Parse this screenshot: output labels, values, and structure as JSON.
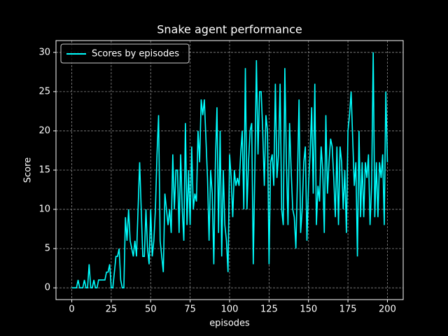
{
  "chart_data": {
    "type": "line",
    "title": "Snake agent performance",
    "x_label": "episodes",
    "y_label": "Score",
    "x": [
      0,
      1,
      2,
      3,
      4,
      5,
      6,
      7,
      8,
      9,
      10,
      11,
      12,
      13,
      14,
      15,
      16,
      17,
      18,
      19,
      20,
      21,
      22,
      23,
      24,
      25,
      26,
      27,
      28,
      29,
      30,
      31,
      32,
      33,
      34,
      35,
      36,
      37,
      38,
      39,
      40,
      41,
      42,
      43,
      44,
      45,
      46,
      47,
      48,
      49,
      50,
      51,
      52,
      53,
      54,
      55,
      56,
      57,
      58,
      59,
      60,
      61,
      62,
      63,
      64,
      65,
      66,
      67,
      68,
      69,
      70,
      71,
      72,
      73,
      74,
      75,
      76,
      77,
      78,
      79,
      80,
      81,
      82,
      83,
      84,
      85,
      86,
      87,
      88,
      89,
      90,
      91,
      92,
      93,
      94,
      95,
      96,
      97,
      98,
      99,
      100,
      101,
      102,
      103,
      104,
      105,
      106,
      107,
      108,
      109,
      110,
      111,
      112,
      113,
      114,
      115,
      116,
      117,
      118,
      119,
      120,
      121,
      122,
      123,
      124,
      125,
      126,
      127,
      128,
      129,
      130,
      131,
      132,
      133,
      134,
      135,
      136,
      137,
      138,
      139,
      140,
      141,
      142,
      143,
      144,
      145,
      146,
      147,
      148,
      149,
      150,
      151,
      152,
      153,
      154,
      155,
      156,
      157,
      158,
      159,
      160,
      161,
      162,
      163,
      164,
      165,
      166,
      167,
      168,
      169,
      170,
      171,
      172,
      173,
      174,
      175,
      176,
      177,
      178,
      179,
      180,
      181,
      182,
      183,
      184,
      185,
      186,
      187,
      188,
      189,
      190,
      191,
      192,
      193,
      194,
      195,
      196,
      197,
      198,
      199,
      200
    ],
    "series": [
      {
        "name": "Scores by episodes",
        "color": "#00ffff",
        "values": [
          0,
          0,
          0,
          0,
          1,
          0,
          0,
          0,
          1,
          0,
          0,
          3,
          0,
          0,
          1,
          0,
          0,
          1,
          1,
          1,
          1,
          1,
          2,
          2,
          3,
          0,
          0,
          2,
          4,
          4,
          5,
          1,
          0,
          0,
          9,
          6,
          10,
          6,
          5,
          4,
          6,
          4,
          10,
          16,
          10,
          4,
          4,
          10,
          5,
          3,
          10,
          4,
          6,
          10,
          17,
          22,
          6,
          4,
          2,
          12,
          10,
          8,
          10,
          7,
          17,
          10,
          15,
          15,
          7,
          17,
          10,
          6,
          21,
          8,
          15,
          8,
          18,
          10,
          12,
          11,
          20,
          16,
          24,
          22,
          24,
          19,
          14,
          6,
          15,
          12,
          3,
          16,
          23,
          7,
          20,
          4,
          15,
          8,
          6,
          2,
          17,
          14,
          9,
          15,
          13,
          14,
          13,
          17,
          20,
          10,
          28,
          10,
          16,
          20,
          21,
          3,
          15,
          29,
          17,
          25,
          25,
          20,
          13,
          22,
          20,
          3,
          16,
          17,
          13,
          26,
          14,
          17,
          26,
          10,
          8,
          28,
          16,
          8,
          21,
          15,
          10,
          9,
          5,
          14,
          24,
          7,
          10,
          16,
          18,
          6,
          13,
          17,
          23,
          12,
          26,
          8,
          13,
          11,
          18,
          15,
          7,
          22,
          12,
          16,
          19,
          18,
          14,
          9,
          18,
          8,
          18,
          16,
          10,
          15,
          7,
          20,
          22,
          25,
          19,
          13,
          16,
          4,
          20,
          9,
          16,
          9,
          16,
          14,
          17,
          8,
          13,
          30,
          9,
          16,
          9,
          16,
          14,
          17,
          8,
          25,
          16
        ]
      }
    ],
    "xlim": [
      -10,
      210
    ],
    "ylim": [
      -1.5,
      31.5
    ],
    "xticks": [
      0,
      25,
      50,
      75,
      100,
      125,
      150,
      175,
      200
    ],
    "yticks": [
      0,
      5,
      10,
      15,
      20,
      25,
      30
    ],
    "grid": true,
    "legend": "upper-left"
  }
}
